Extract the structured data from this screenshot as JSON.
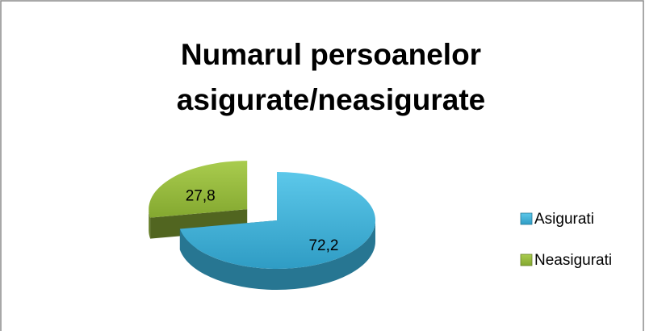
{
  "chart_data": {
    "type": "pie",
    "title": "Numarul persoanelor asigurate/neasigurate",
    "categories": [
      "Asigurati",
      "Neasigurati"
    ],
    "values": [
      72.2,
      27.8
    ],
    "value_labels": [
      "72,2",
      "27,8"
    ],
    "colors": [
      "#3aaed6",
      "#94b83a"
    ],
    "legend": "right"
  }
}
